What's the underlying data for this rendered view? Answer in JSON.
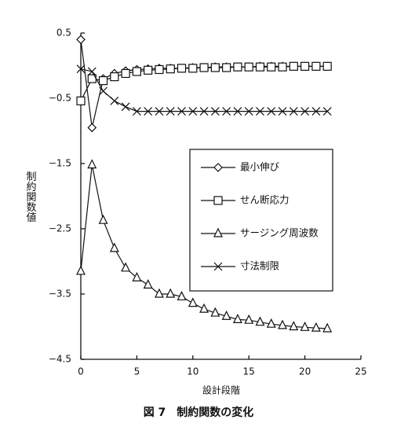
{
  "chart_data": {
    "type": "line",
    "x_label": "設計段階",
    "y_label": "制約関数値",
    "caption": "図 7　制約関数の変化",
    "x": [
      0,
      1,
      2,
      3,
      4,
      5,
      6,
      7,
      8,
      9,
      10,
      11,
      12,
      13,
      14,
      15,
      16,
      17,
      18,
      19,
      20,
      21,
      22
    ],
    "xlim": [
      0,
      25
    ],
    "xticks": [
      0,
      5,
      10,
      15,
      20,
      25
    ],
    "ylim": [
      -4.5,
      0.5
    ],
    "yticks": [
      {
        "value": -4.5,
        "label": "−4.5"
      },
      {
        "value": -3.5,
        "label": "−3.5"
      },
      {
        "value": -2.5,
        "label": "−2.5"
      },
      {
        "value": -1.5,
        "label": "−1.5"
      },
      {
        "value": -0.5,
        "label": "−0.5"
      },
      0.5
    ],
    "series": [
      {
        "name": "最小伸び",
        "color": "#111111",
        "marker": "diamond",
        "values": [
          0.4,
          -0.95,
          -0.2,
          -0.12,
          -0.08,
          -0.06,
          -0.05,
          -0.04,
          -0.04,
          -0.04,
          -0.03,
          -0.03,
          -0.02,
          -0.02,
          -0.02,
          -0.02,
          -0.01,
          -0.01,
          -0.01,
          -0.01,
          -0.01,
          -0.01,
          -0.01
        ]
      },
      {
        "name": "せん断応力",
        "color": "#111111",
        "marker": "square",
        "values": [
          -0.54,
          -0.2,
          -0.23,
          -0.17,
          -0.12,
          -0.09,
          -0.07,
          -0.06,
          -0.05,
          -0.04,
          -0.04,
          -0.03,
          -0.03,
          -0.03,
          -0.02,
          -0.02,
          -0.02,
          -0.02,
          -0.02,
          -0.01,
          -0.01,
          -0.01,
          -0.01
        ]
      },
      {
        "name": "サージング周波数",
        "color": "#111111",
        "marker": "triangle",
        "values": [
          -3.15,
          -1.52,
          -2.37,
          -2.8,
          -3.1,
          -3.25,
          -3.36,
          -3.5,
          -3.5,
          -3.54,
          -3.64,
          -3.73,
          -3.79,
          -3.84,
          -3.89,
          -3.9,
          -3.93,
          -3.96,
          -3.98,
          -4.0,
          -4.01,
          -4.02,
          -4.03
        ]
      },
      {
        "name": "寸法制限",
        "color": "#111111",
        "marker": "cross",
        "values": [
          -0.05,
          -0.09,
          -0.39,
          -0.54,
          -0.63,
          -0.7,
          -0.7,
          -0.7,
          -0.7,
          -0.7,
          -0.7,
          -0.7,
          -0.7,
          -0.7,
          -0.7,
          -0.7,
          -0.7,
          -0.7,
          -0.7,
          -0.7,
          -0.7,
          -0.7,
          -0.7
        ]
      }
    ]
  }
}
